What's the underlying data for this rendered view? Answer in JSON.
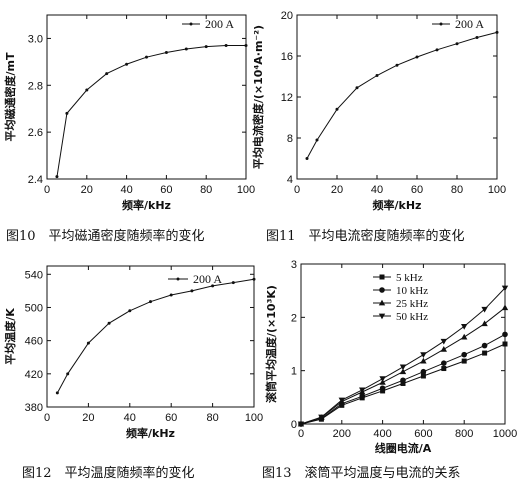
{
  "chart_data": [
    {
      "type": "line",
      "caption": "图10　平均磁通密度随频率的变化",
      "xlabel": "频率/kHz",
      "ylabel": "平均磁通密度/mT",
      "xlim": [
        0,
        100
      ],
      "ylim": [
        2.4,
        3.1
      ],
      "xticks": [
        0,
        20,
        40,
        60,
        80,
        100
      ],
      "yticks": [
        2.4,
        2.6,
        2.8,
        3.0
      ],
      "ytick_labels": [
        "2.4",
        "2.6",
        "2.8",
        "3.0"
      ],
      "legend_position": "top-right",
      "series": [
        {
          "name": "200 A",
          "marker": "dot",
          "x": [
            5,
            10,
            20,
            30,
            40,
            50,
            60,
            70,
            80,
            90,
            100
          ],
          "y": [
            2.41,
            2.68,
            2.78,
            2.85,
            2.89,
            2.92,
            2.94,
            2.955,
            2.965,
            2.97,
            2.97
          ]
        }
      ]
    },
    {
      "type": "line",
      "caption": "图11　平均电流密度随频率的变化",
      "xlabel": "频率/kHz",
      "ylabel": "平均电流密度/(×10⁴A·m⁻²)",
      "xlim": [
        0,
        100
      ],
      "ylim": [
        4,
        20
      ],
      "xticks": [
        0,
        20,
        40,
        60,
        80,
        100
      ],
      "yticks": [
        4,
        8,
        12,
        16,
        20
      ],
      "ytick_labels": [
        "4",
        "8",
        "12",
        "16",
        "20"
      ],
      "legend_position": "top-right",
      "series": [
        {
          "name": "200 A",
          "marker": "dot",
          "x": [
            5,
            10,
            20,
            30,
            40,
            50,
            60,
            70,
            80,
            90,
            100
          ],
          "y": [
            6.0,
            7.8,
            10.8,
            12.9,
            14.1,
            15.1,
            15.9,
            16.6,
            17.2,
            17.8,
            18.3
          ]
        }
      ]
    },
    {
      "type": "line",
      "caption": "图12　平均温度随频率的变化",
      "xlabel": "频率/kHz",
      "ylabel": "平均温度/K",
      "xlim": [
        0,
        100
      ],
      "ylim": [
        380,
        550
      ],
      "xticks": [
        0,
        20,
        40,
        60,
        80,
        100
      ],
      "yticks": [
        380,
        420,
        460,
        500,
        540
      ],
      "ytick_labels": [
        "380",
        "420",
        "460",
        "500",
        "540"
      ],
      "legend_position": "top-right",
      "series": [
        {
          "name": "200 A",
          "marker": "dot",
          "x": [
            5,
            10,
            20,
            30,
            40,
            50,
            60,
            70,
            80,
            90,
            100
          ],
          "y": [
            397,
            420,
            457,
            481,
            496,
            507,
            515,
            520,
            526,
            530,
            534
          ]
        }
      ]
    },
    {
      "type": "line",
      "caption": "图13　滚筒平均温度与电流的关系",
      "xlabel": "线圈电流/A",
      "ylabel": "滚筒平均温度/(×10³K)",
      "xlim": [
        0,
        1000
      ],
      "ylim": [
        0,
        3
      ],
      "xticks": [
        0,
        200,
        400,
        600,
        800,
        1000
      ],
      "yticks": [
        0,
        1,
        2,
        3
      ],
      "ytick_labels": [
        "0",
        "1",
        "2",
        "3"
      ],
      "legend_position": "top-left",
      "series": [
        {
          "name": "5 kHz",
          "marker": "square",
          "x": [
            0,
            100,
            200,
            300,
            400,
            500,
            600,
            700,
            800,
            900,
            1000
          ],
          "y": [
            0,
            0.09,
            0.35,
            0.49,
            0.62,
            0.76,
            0.9,
            1.04,
            1.18,
            1.33,
            1.5
          ]
        },
        {
          "name": "10 kHz",
          "marker": "circle",
          "x": [
            0,
            100,
            200,
            300,
            400,
            500,
            600,
            700,
            800,
            900,
            1000
          ],
          "y": [
            0,
            0.1,
            0.38,
            0.52,
            0.67,
            0.82,
            0.98,
            1.14,
            1.3,
            1.47,
            1.68
          ]
        },
        {
          "name": "25 kHz",
          "marker": "triangle-up",
          "x": [
            0,
            100,
            200,
            300,
            400,
            500,
            600,
            700,
            800,
            900,
            1000
          ],
          "y": [
            0,
            0.12,
            0.42,
            0.6,
            0.78,
            0.98,
            1.18,
            1.4,
            1.63,
            1.88,
            2.18
          ]
        },
        {
          "name": "50 kHz",
          "marker": "triangle-down",
          "x": [
            0,
            100,
            200,
            300,
            400,
            500,
            600,
            700,
            800,
            900,
            1000
          ],
          "y": [
            0,
            0.13,
            0.45,
            0.64,
            0.85,
            1.07,
            1.3,
            1.55,
            1.83,
            2.15,
            2.55
          ]
        }
      ]
    }
  ]
}
